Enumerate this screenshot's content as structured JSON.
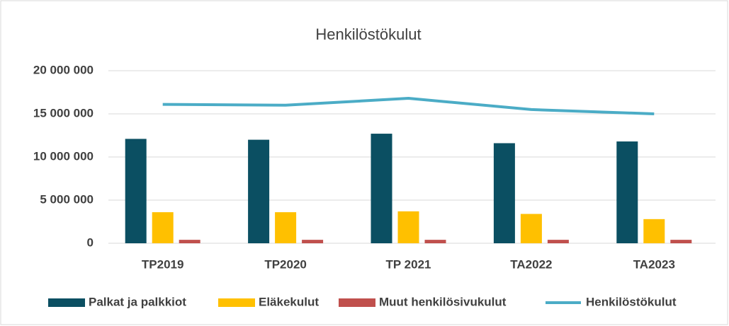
{
  "chart_data": {
    "type": "bar",
    "title": "Henkilöstökulut",
    "categories": [
      "TP2019",
      "TP2020",
      "TP 2021",
      "TA2022",
      "TA2023"
    ],
    "series": [
      {
        "name": "Palkat ja palkkiot",
        "color": "#0b4f62",
        "values": [
          12100000,
          12000000,
          12700000,
          11600000,
          11800000
        ]
      },
      {
        "name": "Eläkekulut",
        "color": "#ffc000",
        "values": [
          3600000,
          3600000,
          3700000,
          3400000,
          2800000
        ]
      },
      {
        "name": "Muut henkilösivukulut",
        "color": "#c0504d",
        "values": [
          400000,
          400000,
          400000,
          400000,
          400000
        ]
      },
      {
        "name": "Henkilöstökulut",
        "color": "#4bacc6",
        "type": "line",
        "values": [
          16100000,
          16000000,
          16800000,
          15500000,
          15000000
        ]
      }
    ],
    "ylim": [
      0,
      20000000
    ],
    "yticks": [
      {
        "value": 0,
        "label": "0"
      },
      {
        "value": 5000000,
        "label": "5 000 000"
      },
      {
        "value": 10000000,
        "label": "10 000 000"
      },
      {
        "value": 15000000,
        "label": "15 000 000"
      },
      {
        "value": 20000000,
        "label": "20 000 000"
      }
    ],
    "grid": true,
    "legend": "bottom"
  }
}
